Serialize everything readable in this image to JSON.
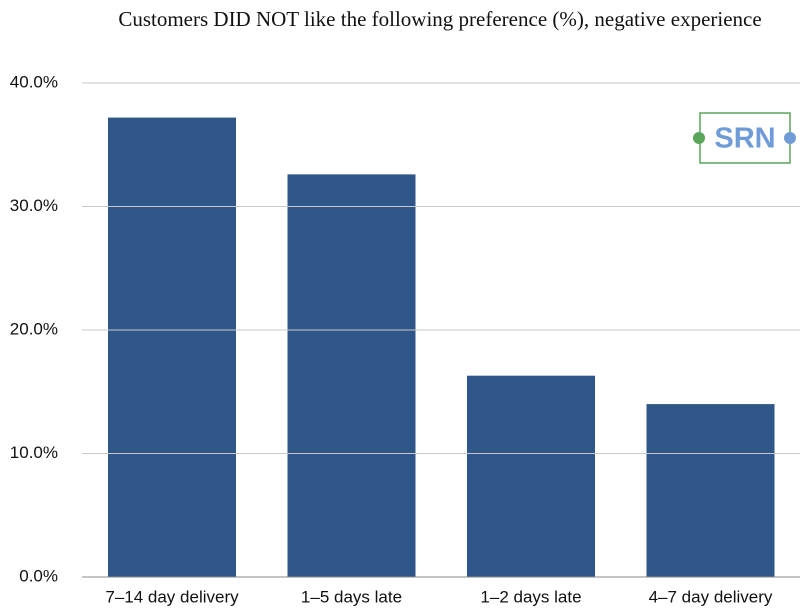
{
  "chart_data": {
    "type": "bar",
    "title": "Customers DID NOT like the following preference (%), negative experience",
    "logo": "SRN",
    "categories": [
      "7–14 day delivery",
      "1–5 days late",
      "1–2 days late",
      "4–7 day delivery"
    ],
    "values": [
      37.2,
      32.6,
      16.3,
      14.0
    ],
    "color": "#2e5689",
    "ylim": [
      0,
      40
    ],
    "yticks": [
      {
        "value": 0,
        "label": "0.0%"
      },
      {
        "value": 10,
        "label": "10.0%"
      },
      {
        "value": 20,
        "label": "20.0%"
      },
      {
        "value": 30,
        "label": "30.0%"
      },
      {
        "value": 40,
        "label": "40.0%"
      }
    ],
    "grid": true
  }
}
